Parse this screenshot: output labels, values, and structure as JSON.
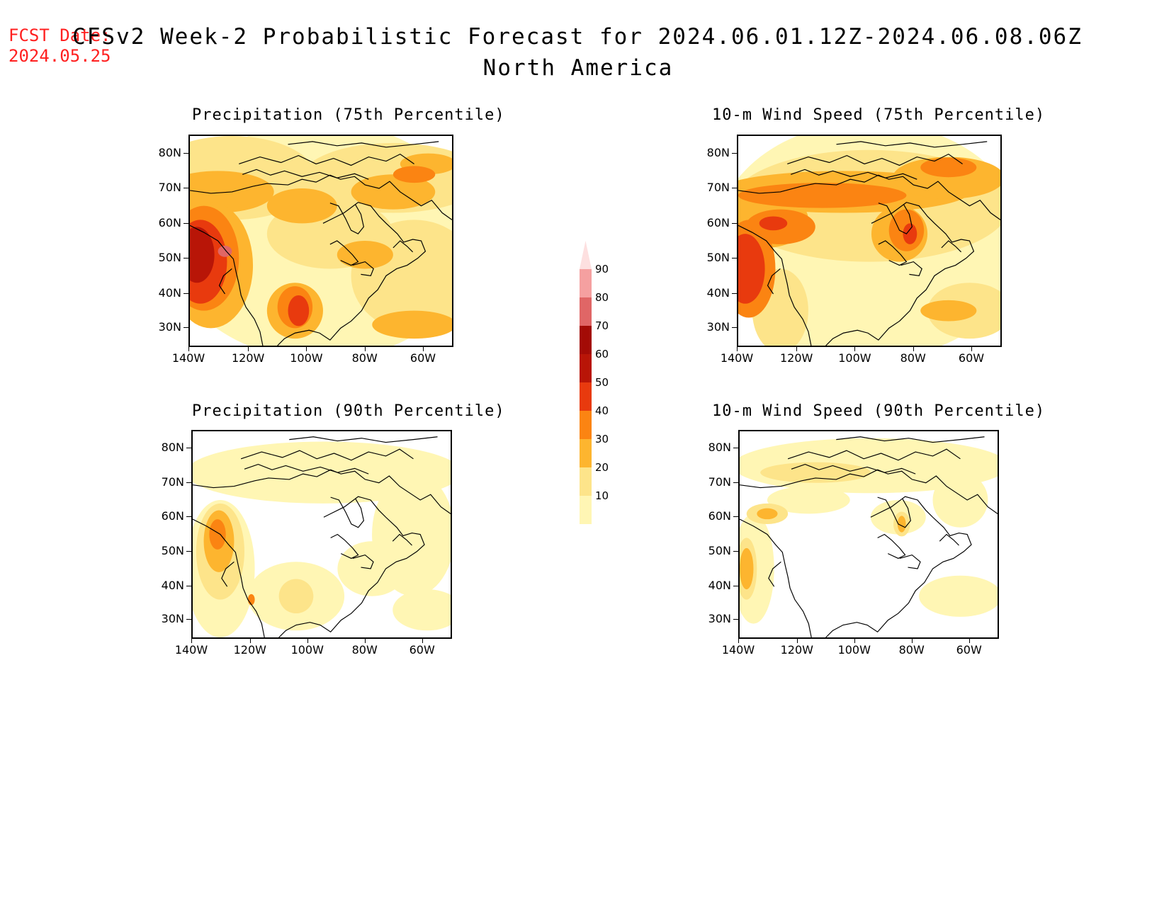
{
  "header": {
    "fcst_label": "FCST Date:",
    "fcst_date": "2024.05.25",
    "title": "CFSv2 Week-2 Probabilistic Forecast for 2024.06.01.12Z-2024.06.08.06Z",
    "subtitle": "North America"
  },
  "axes": {
    "lat_labels": [
      "80N",
      "70N",
      "60N",
      "50N",
      "40N",
      "30N"
    ],
    "lon_labels": [
      "140W",
      "120W",
      "100W",
      "80W",
      "60W"
    ]
  },
  "panels": [
    {
      "id": "precip-75",
      "title": "Precipitation (75th Percentile)"
    },
    {
      "id": "wind-75",
      "title": "10-m Wind Speed (75th Percentile)"
    },
    {
      "id": "precip-90",
      "title": "Precipitation (90th Percentile)"
    },
    {
      "id": "wind-90",
      "title": "10-m Wind Speed (90th Percentile)"
    }
  ],
  "legend": {
    "labels": [
      "90",
      "80",
      "70",
      "60",
      "50",
      "40",
      "30",
      "20",
      "10"
    ],
    "colors": {
      "p10": "#fff6b4",
      "p20": "#fde48a",
      "p30": "#fdb52f",
      "p40": "#fb8412",
      "p50": "#e83a0e",
      "p60": "#b81507",
      "p70": "#a30b06",
      "p80": "#e06666",
      "p90": "#f5a0a0",
      "top": "#fde0e0"
    }
  }
}
